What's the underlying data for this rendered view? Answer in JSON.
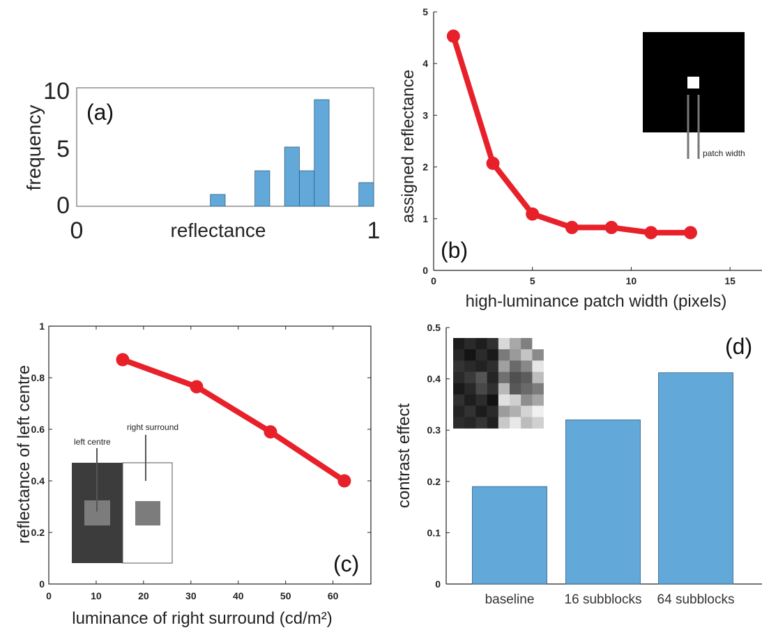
{
  "chart_data": [
    {
      "type": "bar",
      "panel": "(a)",
      "xlabel": "reflectance",
      "ylabel": "frequency",
      "xlim": [
        0,
        1
      ],
      "ylim": [
        0,
        10
      ],
      "x_ticks": [
        "0",
        "1"
      ],
      "y_ticks": [
        "0",
        "5",
        "10"
      ],
      "bin_width": 0.05,
      "bins": [
        {
          "start": 0.45,
          "value": 1
        },
        {
          "start": 0.6,
          "value": 3
        },
        {
          "start": 0.7,
          "value": 5
        },
        {
          "start": 0.75,
          "value": 3
        },
        {
          "start": 0.8,
          "value": 9
        },
        {
          "start": 0.95,
          "value": 2
        }
      ],
      "color": "#62a8d8"
    },
    {
      "type": "line",
      "panel": "(b)",
      "xlabel": "high-luminance patch width (pixels)",
      "ylabel": "assigned reflectance",
      "xlim": [
        0,
        16
      ],
      "ylim": [
        0,
        5
      ],
      "x_ticks": [
        "0",
        "5",
        "10",
        "15"
      ],
      "y_ticks": [
        "0",
        "1",
        "2",
        "3",
        "4",
        "5"
      ],
      "x": [
        1,
        3,
        5,
        7,
        9,
        11,
        13
      ],
      "y": [
        4.53,
        2.07,
        1.09,
        0.83,
        0.83,
        0.73,
        0.73
      ],
      "color": "#e8202a",
      "inset_label": "patch width"
    },
    {
      "type": "line",
      "panel": "(c)",
      "xlabel": "luminance of right surround (cd/m²)",
      "ylabel": "reflectance of left centre",
      "xlim": [
        0,
        68
      ],
      "ylim": [
        0,
        1
      ],
      "x_ticks": [
        "0",
        "10",
        "20",
        "30",
        "40",
        "50",
        "60"
      ],
      "y_ticks": [
        "0",
        "0.2",
        "0.4",
        "0.6",
        "0.8",
        "1"
      ],
      "x": [
        15.6,
        31.2,
        46.8,
        62.4
      ],
      "y": [
        0.87,
        0.765,
        0.59,
        0.4
      ],
      "color": "#e8202a",
      "inset_labels": [
        "left centre",
        "right surround"
      ]
    },
    {
      "type": "bar",
      "panel": "(d)",
      "ylabel": "contrast effect",
      "ylim": [
        0,
        0.5
      ],
      "y_ticks": [
        "0",
        "0.1",
        "0.2",
        "0.3",
        "0.4",
        "0.5"
      ],
      "categories": [
        "baseline",
        "16 subblocks",
        "64 subblocks"
      ],
      "values": [
        0.19,
        0.32,
        0.412
      ],
      "color": "#62a8d8"
    }
  ]
}
